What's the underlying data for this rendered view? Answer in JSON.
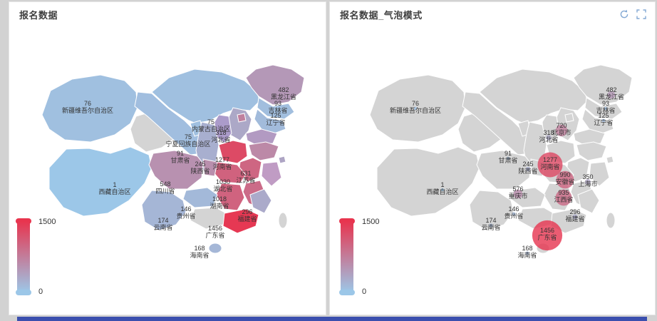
{
  "page": {
    "background": "#d2d2d2",
    "bottom_bar_color": "#3b4fae"
  },
  "left_panel": {
    "title": "报名数据"
  },
  "right_panel": {
    "title": "报名数据_气泡模式",
    "icons": [
      "refresh-icon",
      "fullscreen-icon"
    ],
    "icon_color": "#84a9d4"
  },
  "visual_map": {
    "min": 0,
    "max": 1500,
    "min_label": "0",
    "max_label": "1500",
    "low_color": "#9cc7e8",
    "high_color": "#e8344e",
    "no_data_color": "#d4d4d4"
  },
  "map_style": {
    "unlabeled_region_fills": {
      "山西省": "#ab9bca",
      "山东省": "#b29ac2",
      "浙江省": "#c09cc4"
    }
  },
  "chart_data": [
    {
      "type": "map",
      "title": "报名数据",
      "map": "china",
      "visual_range": [
        0,
        1500
      ],
      "legend_position": "bottom-left",
      "data": [
        {
          "name": "新疆维吾尔自治区",
          "value": 76
        },
        {
          "name": "西藏自治区",
          "value": 1
        },
        {
          "name": "甘肃省",
          "value": 91
        },
        {
          "name": "内蒙古自治区",
          "value": 75
        },
        {
          "name": "宁夏回族自治区",
          "value": 75
        },
        {
          "name": "黑龙江省",
          "value": 482
        },
        {
          "name": "吉林省",
          "value": 93
        },
        {
          "name": "辽宁省",
          "value": 125
        },
        {
          "name": "河北省",
          "value": 318
        },
        {
          "name": "陕西省",
          "value": 245
        },
        {
          "name": "河南省",
          "value": 1277
        },
        {
          "name": "江苏省",
          "value": 631
        },
        {
          "name": "四川省",
          "value": 548
        },
        {
          "name": "湖北省",
          "value": 1030
        },
        {
          "name": "湖南省",
          "value": 1018
        },
        {
          "name": "贵州省",
          "value": 146
        },
        {
          "name": "云南省",
          "value": 174
        },
        {
          "name": "福建省",
          "value": 296
        },
        {
          "name": "广东省",
          "value": 1456
        },
        {
          "name": "海南省",
          "value": 168
        },
        {
          "name": "北京市",
          "value": 720,
          "label": false
        },
        {
          "name": "安徽省",
          "value": 990,
          "label": false
        },
        {
          "name": "上海市",
          "value": 350,
          "label": false
        },
        {
          "name": "重庆市",
          "value": 576,
          "label": false
        },
        {
          "name": "江西省",
          "value": 935,
          "label": false
        }
      ]
    },
    {
      "type": "map-bubble",
      "title": "报名数据_气泡模式",
      "map": "china",
      "visual_range": [
        0,
        1500
      ],
      "legend_position": "bottom-left",
      "data": [
        {
          "name": "新疆维吾尔自治区",
          "value": 76
        },
        {
          "name": "西藏自治区",
          "value": 1
        },
        {
          "name": "甘肃省",
          "value": 91
        },
        {
          "name": "黑龙江省",
          "value": 482
        },
        {
          "name": "吉林省",
          "value": 93
        },
        {
          "name": "辽宁省",
          "value": 125
        },
        {
          "name": "北京市",
          "value": 720
        },
        {
          "name": "河北省",
          "value": 318
        },
        {
          "name": "陕西省",
          "value": 245
        },
        {
          "name": "河南省",
          "value": 1277
        },
        {
          "name": "安徽省",
          "value": 990
        },
        {
          "name": "上海市",
          "value": 350
        },
        {
          "name": "重庆市",
          "value": 576
        },
        {
          "name": "江西省",
          "value": 935
        },
        {
          "name": "贵州省",
          "value": 146
        },
        {
          "name": "云南省",
          "value": 174
        },
        {
          "name": "福建省",
          "value": 296
        },
        {
          "name": "广东省",
          "value": 1456
        },
        {
          "name": "海南省",
          "value": 168
        }
      ]
    }
  ]
}
